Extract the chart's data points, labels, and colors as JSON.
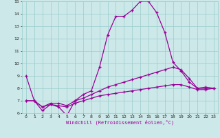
{
  "xlabel": "Windchill (Refroidissement éolien,°C)",
  "xlim": [
    -0.5,
    23.5
  ],
  "ylim": [
    6,
    15
  ],
  "xticks": [
    0,
    1,
    2,
    3,
    4,
    5,
    6,
    7,
    8,
    9,
    10,
    11,
    12,
    13,
    14,
    15,
    16,
    17,
    18,
    19,
    20,
    21,
    22,
    23
  ],
  "yticks": [
    6,
    7,
    8,
    9,
    10,
    11,
    12,
    13,
    14,
    15
  ],
  "bg_color": "#cce8e8",
  "grid_color": "#99cccc",
  "line_color": "#990099",
  "line1_x": [
    0,
    1,
    2,
    3,
    4,
    5,
    6,
    7,
    8,
    9,
    10,
    11,
    12,
    13,
    14,
    15,
    16,
    17,
    18,
    19,
    20,
    21,
    22,
    23
  ],
  "line1_y": [
    9.0,
    7.0,
    6.2,
    6.7,
    6.5,
    5.8,
    7.0,
    7.5,
    7.8,
    9.7,
    12.3,
    13.8,
    13.8,
    14.3,
    15.0,
    15.0,
    14.1,
    12.5,
    10.1,
    9.4,
    8.5,
    8.0,
    8.1,
    8.0
  ],
  "line2_x": [
    0,
    1,
    2,
    3,
    4,
    5,
    6,
    7,
    8,
    9,
    10,
    11,
    12,
    13,
    14,
    15,
    16,
    17,
    18,
    19,
    20,
    21,
    22,
    23
  ],
  "line2_y": [
    7.0,
    7.0,
    6.5,
    6.8,
    6.8,
    6.6,
    7.0,
    7.2,
    7.5,
    7.8,
    8.1,
    8.3,
    8.5,
    8.7,
    8.9,
    9.1,
    9.3,
    9.5,
    9.7,
    9.5,
    8.8,
    8.0,
    8.0,
    8.0
  ],
  "line3_x": [
    0,
    1,
    2,
    3,
    4,
    5,
    6,
    7,
    8,
    9,
    10,
    11,
    12,
    13,
    14,
    15,
    16,
    17,
    18,
    19,
    20,
    21,
    22,
    23
  ],
  "line3_y": [
    7.0,
    7.0,
    6.5,
    6.7,
    6.6,
    6.5,
    6.8,
    7.0,
    7.2,
    7.4,
    7.5,
    7.6,
    7.7,
    7.8,
    7.9,
    8.0,
    8.1,
    8.2,
    8.3,
    8.3,
    8.1,
    7.9,
    7.9,
    8.0
  ]
}
